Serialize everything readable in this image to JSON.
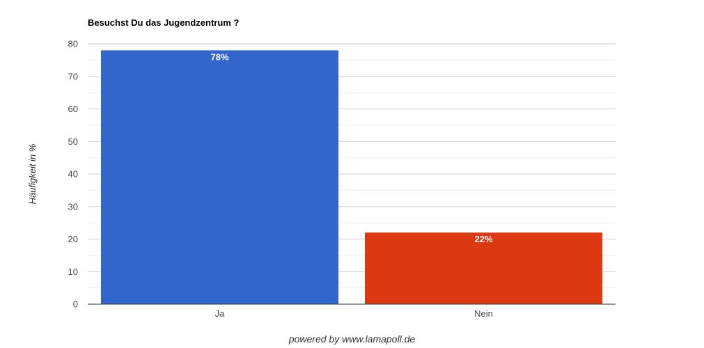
{
  "chart_data": {
    "type": "bar",
    "title": "Besuchst Du das Jugendzentrum ?",
    "xlabel": "",
    "ylabel": "Häufigkeit in %",
    "categories": [
      "Ja",
      "Nein"
    ],
    "values": [
      78,
      22
    ],
    "value_labels": [
      "78%",
      "22%"
    ],
    "colors": [
      "#3366cc",
      "#dc3912"
    ],
    "ylim": [
      0,
      80
    ],
    "yticks": [
      0,
      10,
      20,
      30,
      40,
      50,
      60,
      70,
      80
    ],
    "grid": true,
    "legend": "none"
  },
  "footer": "powered by www.lamapoll.de"
}
